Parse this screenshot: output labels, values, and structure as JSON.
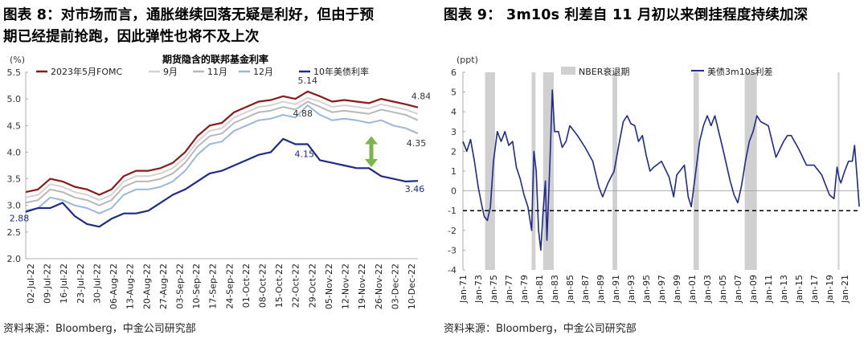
{
  "left_panel": {
    "title_line1": "图表 8：对市场而言，通胀继续回落无疑是利好，但由于预",
    "title_line2": "期已经提前抢跑，因此弹性也将不及上次",
    "source": "资料来源：Bloomberg，中金公司研究部"
  },
  "right_panel": {
    "title": "图表 9：  3m10s 利差自 11 月初以来倒挂程度持续加深",
    "source": "资料来源：Bloomberg，中金公司研究部"
  },
  "colors": {
    "fomc_may": "#8b1a1a",
    "sep": "#d3d3d3",
    "nov": "#b8b8b8",
    "dec": "#9bb7d9",
    "ust10": "#1f2a8a",
    "spread": "#1f2a8a",
    "nber": "#d0d0d0",
    "arrow": "#7ab648"
  },
  "chart_data": [
    {
      "type": "line",
      "title": "期货隐含的联邦基金利率",
      "ylabel": "(%)",
      "ylim": [
        2.0,
        5.5
      ],
      "yticks": [
        "5.5",
        "5.0",
        "4.5",
        "4.0",
        "3.5",
        "3.0",
        "2.5",
        "2.0"
      ],
      "x_tick_labels": [
        "02-Jul-22",
        "09-Jul-22",
        "16-Jul-22",
        "23-Jul-22",
        "30-Jul-22",
        "06-Aug-22",
        "13-Aug-22",
        "20-Aug-22",
        "27-Aug-22",
        "03-Sep-22",
        "10-Sep-22",
        "17-Sep-22",
        "24-Sep-22",
        "01-Oct-22",
        "08-Oct-22",
        "15-Oct-22",
        "22-Oct-22",
        "29-Oct-22",
        "05-Nov-22",
        "12-Nov-22",
        "19-Nov-22",
        "26-Nov-22",
        "03-Dec-22",
        "10-Dec-22"
      ],
      "legend": [
        "2023年5月FOMC",
        "9月",
        "11月",
        "12月",
        "10年美债利率"
      ],
      "series": [
        {
          "name": "2023年5月FOMC",
          "key": "fomc_may",
          "values": [
            3.25,
            3.3,
            3.5,
            3.45,
            3.35,
            3.3,
            3.2,
            3.3,
            3.55,
            3.65,
            3.65,
            3.7,
            3.8,
            4.0,
            4.3,
            4.5,
            4.55,
            4.75,
            4.85,
            4.95,
            4.98,
            5.05,
            5.0,
            5.14,
            5.05,
            4.95,
            4.98,
            4.95,
            4.92,
            5.0,
            4.95,
            4.9,
            4.84
          ]
        },
        {
          "name": "9月",
          "key": "sep",
          "values": [
            3.15,
            3.2,
            3.4,
            3.35,
            3.25,
            3.2,
            3.1,
            3.2,
            3.45,
            3.55,
            3.55,
            3.6,
            3.7,
            3.9,
            4.2,
            4.4,
            4.45,
            4.65,
            4.75,
            4.85,
            4.88,
            4.95,
            4.9,
            5.02,
            4.95,
            4.85,
            4.88,
            4.85,
            4.82,
            4.9,
            4.85,
            4.8,
            4.72
          ]
        },
        {
          "name": "11月",
          "key": "nov",
          "values": [
            3.05,
            3.1,
            3.3,
            3.25,
            3.15,
            3.1,
            3.0,
            3.1,
            3.35,
            3.45,
            3.45,
            3.5,
            3.6,
            3.8,
            4.1,
            4.3,
            4.35,
            4.55,
            4.65,
            4.75,
            4.78,
            4.85,
            4.8,
            4.95,
            4.85,
            4.75,
            4.78,
            4.75,
            4.72,
            4.8,
            4.75,
            4.7,
            4.6
          ]
        },
        {
          "name": "12月",
          "key": "dec",
          "values": [
            2.9,
            2.95,
            3.15,
            3.1,
            3.0,
            2.95,
            2.85,
            2.95,
            3.2,
            3.3,
            3.3,
            3.35,
            3.45,
            3.65,
            3.95,
            4.15,
            4.2,
            4.4,
            4.5,
            4.6,
            4.63,
            4.7,
            4.65,
            4.88,
            4.7,
            4.6,
            4.63,
            4.6,
            4.55,
            4.6,
            4.5,
            4.45,
            4.35
          ]
        },
        {
          "name": "10年美债利率",
          "key": "ust10",
          "values": [
            2.88,
            2.95,
            2.95,
            3.05,
            2.8,
            2.65,
            2.6,
            2.75,
            2.85,
            2.85,
            2.9,
            3.05,
            3.2,
            3.3,
            3.45,
            3.6,
            3.65,
            3.75,
            3.85,
            3.95,
            4.0,
            4.25,
            4.15,
            4.15,
            3.85,
            3.8,
            3.75,
            3.7,
            3.7,
            3.55,
            3.5,
            3.45,
            3.46
          ]
        }
      ],
      "annotations": [
        {
          "label": "5.14",
          "series": "fomc_may",
          "index": 23
        },
        {
          "label": "4.84",
          "series": "fomc_may",
          "index": 32
        },
        {
          "label": "4.88",
          "series": "dec",
          "index": 23
        },
        {
          "label": "4.35",
          "series": "dec",
          "index": 32
        },
        {
          "label": "4.15",
          "series": "ust10",
          "index": 23
        },
        {
          "label": "3.46",
          "series": "ust10",
          "index": 32
        },
        {
          "label": "2.88",
          "series": "ust10",
          "index": 0
        }
      ]
    },
    {
      "type": "line",
      "ylabel": "(ppt)",
      "ylim": [
        -4,
        6
      ],
      "yticks": [
        "6",
        "5",
        "4",
        "3",
        "2",
        "1",
        "0",
        "-1",
        "-2",
        "-3",
        "-4"
      ],
      "x_tick_labels": [
        "Jan-71",
        "Jan-73",
        "Jan-75",
        "Jan-77",
        "Jan-79",
        "Jan-81",
        "Jan-83",
        "Jan-85",
        "Jan-87",
        "Jan-89",
        "Jan-91",
        "Jan-93",
        "Jan-95",
        "Jan-97",
        "Jan-99",
        "Jan-01",
        "Jan-03",
        "Jan-05",
        "Jan-07",
        "Jan-09",
        "Jan-11",
        "Jan-13",
        "Jan-15",
        "Jan-17",
        "Jan-19",
        "Jan-21"
      ],
      "x_range": [
        1971.0,
        2023.0
      ],
      "reference_line": -1,
      "recessions": [
        [
          1973.9,
          1975.2
        ],
        [
          1980.0,
          1980.5
        ],
        [
          1981.5,
          1982.9
        ],
        [
          1990.6,
          1991.2
        ],
        [
          2001.2,
          2001.9
        ],
        [
          2007.9,
          2009.5
        ],
        [
          2020.1,
          2020.3
        ]
      ],
      "series": [
        {
          "name": "美债3m10s利差",
          "key": "spread",
          "x": [
            1971.0,
            1971.5,
            1972.0,
            1972.5,
            1973.0,
            1973.5,
            1973.8,
            1974.2,
            1974.6,
            1975.0,
            1975.5,
            1976.0,
            1976.5,
            1977.0,
            1977.5,
            1978.0,
            1978.5,
            1979.0,
            1979.5,
            1980.0,
            1980.3,
            1980.6,
            1980.9,
            1981.2,
            1981.5,
            1981.8,
            1982.0,
            1982.4,
            1982.7,
            1983.0,
            1983.5,
            1984.0,
            1984.5,
            1985.0,
            1986.0,
            1987.0,
            1988.0,
            1988.8,
            1989.3,
            1990.0,
            1990.8,
            1991.5,
            1992.0,
            1992.5,
            1993.0,
            1993.5,
            1994.0,
            1994.5,
            1995.0,
            1995.5,
            1996.0,
            1997.0,
            1998.0,
            1998.6,
            1999.0,
            2000.0,
            2000.5,
            2000.9,
            2001.5,
            2002.0,
            2002.5,
            2003.0,
            2003.5,
            2004.0,
            2005.0,
            2006.0,
            2006.5,
            2007.0,
            2007.5,
            2008.0,
            2008.5,
            2009.0,
            2009.5,
            2010.0,
            2011.0,
            2012.0,
            2013.0,
            2013.5,
            2014.0,
            2015.0,
            2016.0,
            2017.0,
            2018.0,
            2019.0,
            2019.6,
            2020.0,
            2020.3,
            2020.5,
            2021.0,
            2021.5,
            2022.0,
            2022.3,
            2022.6,
            2022.9
          ],
          "values": [
            2.5,
            2.0,
            2.6,
            1.5,
            0.2,
            -0.8,
            -1.3,
            -1.5,
            -0.8,
            1.5,
            3.0,
            2.5,
            3.0,
            2.3,
            2.5,
            1.2,
            0.6,
            -0.2,
            -0.8,
            -2.0,
            2.0,
            1.0,
            -2.0,
            -3.0,
            -1.0,
            0.5,
            -2.5,
            1.5,
            5.1,
            3.0,
            3.0,
            2.2,
            2.5,
            3.3,
            2.8,
            2.2,
            1.5,
            0.2,
            -0.3,
            0.4,
            1.0,
            2.5,
            3.5,
            3.8,
            3.4,
            3.3,
            2.5,
            2.8,
            1.8,
            1.0,
            1.2,
            1.5,
            0.7,
            -0.3,
            0.8,
            1.3,
            -0.3,
            -0.8,
            1.0,
            2.5,
            3.3,
            3.8,
            3.3,
            3.8,
            2.2,
            0.5,
            -0.2,
            -0.6,
            0.3,
            1.5,
            2.5,
            3.0,
            3.8,
            3.5,
            3.3,
            1.7,
            2.5,
            2.8,
            2.8,
            2.1,
            1.3,
            1.3,
            0.8,
            -0.2,
            -0.4,
            1.2,
            0.6,
            0.4,
            1.0,
            1.5,
            1.5,
            2.3,
            0.8,
            -0.8
          ]
        }
      ],
      "legend": [
        "NBER衰退期",
        "美债3m10s利差"
      ]
    }
  ]
}
